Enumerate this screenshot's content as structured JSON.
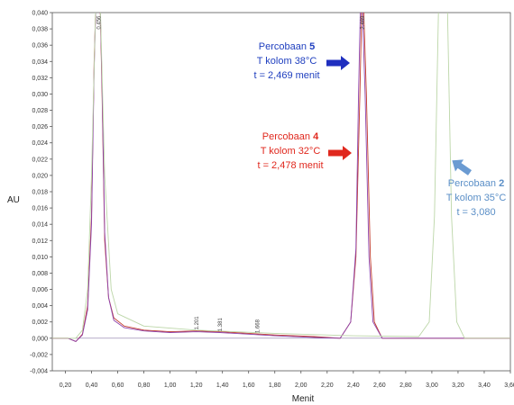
{
  "chart_data": {
    "type": "line",
    "title": "",
    "xlabel": "Menit",
    "ylabel": "AU",
    "xlim": [
      0.1,
      3.6
    ],
    "ylim": [
      -0.004,
      0.04
    ],
    "x_ticks": [
      "0,20",
      "0,40",
      "0,60",
      "0,80",
      "1,00",
      "1,20",
      "1,40",
      "1,60",
      "1,80",
      "2,00",
      "2,20",
      "2,40",
      "2,60",
      "2,80",
      "3,00",
      "3,20",
      "3,40",
      "3,60"
    ],
    "y_ticks": [
      "-0,004",
      "-0,002",
      "0,000",
      "0,002",
      "0,004",
      "0,006",
      "0,008",
      "0,010",
      "0,012",
      "0,014",
      "0,016",
      "0,018",
      "0,020",
      "0,022",
      "0,024",
      "0,026",
      "0,028",
      "0,030",
      "0,032",
      "0,034",
      "0,036",
      "0,038",
      "0,040"
    ],
    "peak_labels": [
      {
        "text": "0.456",
        "x": 0.455,
        "y": 0.0396
      },
      {
        "text": "1.201",
        "x": 1.201,
        "y": 0.0027
      },
      {
        "text": "1.381",
        "x": 1.381,
        "y": 0.0025
      },
      {
        "text": "1.668",
        "x": 1.668,
        "y": 0.0023
      },
      {
        "text": "2.469",
        "x": 2.469,
        "y": 0.0396
      }
    ],
    "series": [
      {
        "color": "#c0392b",
        "points": [
          [
            0.1,
            0
          ],
          [
            0.22,
            0
          ],
          [
            0.28,
            -0.0004
          ],
          [
            0.33,
            0.0005
          ],
          [
            0.37,
            0.004
          ],
          [
            0.4,
            0.015
          ],
          [
            0.42,
            0.034
          ],
          [
            0.44,
            0.045
          ],
          [
            0.46,
            0.045
          ],
          [
            0.48,
            0.03
          ],
          [
            0.5,
            0.012
          ],
          [
            0.53,
            0.005
          ],
          [
            0.57,
            0.0025
          ],
          [
            0.65,
            0.0015
          ],
          [
            0.8,
            0.001
          ],
          [
            1.0,
            0.0008
          ],
          [
            1.2,
            0.0009
          ],
          [
            1.38,
            0.0008
          ],
          [
            1.6,
            0.0006
          ],
          [
            1.8,
            0.0004
          ],
          [
            2.1,
            0.0002
          ],
          [
            2.3,
            0
          ],
          [
            2.38,
            0.002
          ],
          [
            2.42,
            0.01
          ],
          [
            2.45,
            0.03
          ],
          [
            2.47,
            0.045
          ],
          [
            2.5,
            0.03
          ],
          [
            2.53,
            0.01
          ],
          [
            2.56,
            0.002
          ],
          [
            2.62,
            0
          ],
          [
            3.6,
            0
          ]
        ]
      },
      {
        "color": "#8e44ad",
        "points": [
          [
            0.1,
            0
          ],
          [
            0.22,
            0
          ],
          [
            0.28,
            -0.0004
          ],
          [
            0.33,
            0.0004
          ],
          [
            0.37,
            0.0035
          ],
          [
            0.4,
            0.014
          ],
          [
            0.42,
            0.033
          ],
          [
            0.44,
            0.045
          ],
          [
            0.46,
            0.045
          ],
          [
            0.48,
            0.031
          ],
          [
            0.5,
            0.013
          ],
          [
            0.53,
            0.005
          ],
          [
            0.57,
            0.0022
          ],
          [
            0.65,
            0.0013
          ],
          [
            0.8,
            0.0009
          ],
          [
            1.0,
            0.0007
          ],
          [
            1.2,
            0.0008
          ],
          [
            1.38,
            0.0007
          ],
          [
            1.6,
            0.0005
          ],
          [
            1.8,
            0.0003
          ],
          [
            2.1,
            0.0001
          ],
          [
            2.3,
            0
          ],
          [
            2.38,
            0.002
          ],
          [
            2.42,
            0.011
          ],
          [
            2.44,
            0.03
          ],
          [
            2.46,
            0.045
          ],
          [
            2.49,
            0.03
          ],
          [
            2.52,
            0.01
          ],
          [
            2.55,
            0.002
          ],
          [
            2.62,
            0
          ],
          [
            3.6,
            0
          ]
        ]
      },
      {
        "color": "#bcd6a8",
        "points": [
          [
            0.1,
            0
          ],
          [
            0.28,
            0
          ],
          [
            0.33,
            0.001
          ],
          [
            0.37,
            0.006
          ],
          [
            0.4,
            0.02
          ],
          [
            0.43,
            0.04
          ],
          [
            0.46,
            0.045
          ],
          [
            0.5,
            0.02
          ],
          [
            0.55,
            0.006
          ],
          [
            0.6,
            0.003
          ],
          [
            0.8,
            0.0015
          ],
          [
            1.2,
            0.001
          ],
          [
            1.8,
            0.0006
          ],
          [
            2.4,
            0.0003
          ],
          [
            2.9,
            0.0002
          ],
          [
            2.98,
            0.002
          ],
          [
            3.02,
            0.015
          ],
          [
            3.05,
            0.04
          ],
          [
            3.08,
            0.045
          ],
          [
            3.12,
            0.04
          ],
          [
            3.15,
            0.015
          ],
          [
            3.19,
            0.002
          ],
          [
            3.25,
            0
          ],
          [
            3.6,
            0
          ]
        ]
      }
    ],
    "annotations": [
      {
        "lines": [
          {
            "text": "Percobaan ",
            "bold": "5"
          },
          {
            "text": "T kolom 38°C"
          },
          {
            "text": "t = 2,469 menit"
          }
        ],
        "color": "#1f3fbf"
      },
      {
        "lines": [
          {
            "text": "Percobaan ",
            "bold": "4"
          },
          {
            "text": "T kolom 32°C"
          },
          {
            "text": "t = 2,478 menit"
          }
        ],
        "color": "#e0281e"
      },
      {
        "lines": [
          {
            "text": "Percobaan ",
            "bold": "2"
          },
          {
            "text": "T kolom 35°C"
          },
          {
            "text": "t = 3,080"
          }
        ],
        "color": "#5b8fc7"
      }
    ],
    "arrow_colors": [
      "#1f2fbf",
      "#e0281e",
      "#6b9bd2"
    ],
    "grid": false
  }
}
